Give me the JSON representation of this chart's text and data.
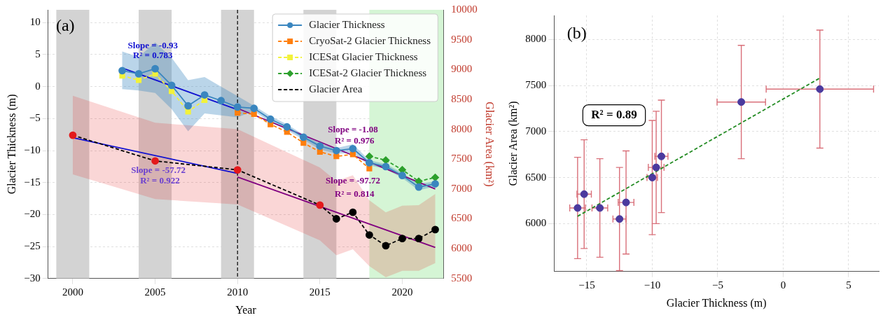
{
  "chart_data": [
    {
      "type": "line",
      "xlabel": "Year",
      "ylabel": "Glacier Thickness (m)",
      "y2label": "Glacier Area (km²)",
      "xlim": [
        1998.5,
        2022.5
      ],
      "xticks": [
        2000,
        2005,
        2010,
        2015,
        2020
      ],
      "ylim": [
        -30,
        12
      ],
      "yticks": [
        -30,
        -25,
        -20,
        -15,
        -10,
        -5,
        0,
        5,
        10
      ],
      "y2lim": [
        5500,
        10000
      ],
      "y2ticks": [
        5500,
        6000,
        6500,
        7000,
        7500,
        8000,
        8500,
        9000,
        9500,
        10000
      ],
      "grid": true,
      "legend": "top right",
      "bands": [
        {
          "axis": "x",
          "from": 1999,
          "to": 2001,
          "color": "#d3d3d3"
        },
        {
          "axis": "x",
          "from": 2004,
          "to": 2006,
          "color": "#d3d3d3"
        },
        {
          "axis": "x",
          "from": 2009,
          "to": 2011,
          "color": "#d3d3d3"
        },
        {
          "axis": "x",
          "from": 2014,
          "to": 2016,
          "color": "#d3d3d3"
        },
        {
          "axis": "x",
          "from": 2018,
          "to": 2022.5,
          "color": "#d5f5d5"
        }
      ],
      "ref_lines": [
        {
          "axis": "x",
          "value": 2010,
          "color": "#000000",
          "line_style": "dashed"
        }
      ],
      "series": [
        {
          "name": "Glacier Thickness",
          "color": "#3a86bf",
          "marker": "circle",
          "line_style": "solid",
          "x": [
            2003,
            2004,
            2005,
            2006,
            2007,
            2008,
            2009,
            2010,
            2011,
            2012,
            2013,
            2014,
            2015,
            2016,
            2017,
            2018,
            2019,
            2020,
            2021,
            2022
          ],
          "values": [
            2.5,
            2.0,
            2.8,
            0.2,
            -3.0,
            -1.3,
            -2.2,
            -3.2,
            -3.4,
            -5.1,
            -6.3,
            -7.9,
            -9.3,
            -10.0,
            -9.7,
            -11.9,
            -12.5,
            -13.9,
            -15.7,
            -15.2
          ],
          "upper": [
            5.5,
            4.6,
            6.9,
            4.5,
            1.0,
            1.5,
            0.0,
            -1.5,
            -3.0,
            -4.6,
            -5.9,
            -7.5,
            -8.9,
            -9.6,
            -9.0,
            -11.5,
            -12.1,
            -13.5,
            -15.2,
            -14.8
          ],
          "lower": [
            -0.4,
            -0.6,
            -1.0,
            -3.5,
            -7.0,
            -4.2,
            -4.5,
            -4.8,
            -3.8,
            -5.6,
            -6.8,
            -8.3,
            -9.8,
            -10.5,
            -10.4,
            -12.3,
            -12.9,
            -14.3,
            -16.2,
            -15.6
          ]
        },
        {
          "name": "CryoSat-2 Glacier Thickness",
          "color": "#ff7f0e",
          "marker": "square",
          "line_style": "dashed",
          "x": [
            2010,
            2011,
            2012,
            2013,
            2014,
            2015,
            2016,
            2017,
            2018
          ],
          "values": [
            -4.1,
            -4.3,
            -5.9,
            -7.1,
            -8.8,
            -10.2,
            -10.9,
            -10.6,
            -12.8
          ]
        },
        {
          "name": "ICESat Glacier Thickness",
          "color": "#f2f23a",
          "marker": "square",
          "line_style": "dashed",
          "x": [
            2003,
            2004,
            2005,
            2006,
            2007,
            2008
          ],
          "values": [
            1.7,
            1.0,
            2.0,
            -0.7,
            -3.9,
            -2.1
          ]
        },
        {
          "name": "ICESat-2 Glacier Thickness",
          "color": "#2ca02c",
          "marker": "diamond",
          "line_style": "dashed",
          "x": [
            2018,
            2019,
            2020,
            2021,
            2022
          ],
          "values": [
            -10.9,
            -11.5,
            -13.0,
            -14.8,
            -14.2
          ]
        },
        {
          "name": "Glacier Area",
          "axis": "y2",
          "color": "#000000",
          "marker": "circle",
          "line_style": "dashed",
          "x": [
            2000,
            2005,
            2010,
            2015,
            2016,
            2017,
            2018,
            2019,
            2020,
            2021,
            2022
          ],
          "values": [
            7900,
            7470,
            7320,
            6730,
            6500,
            6610,
            6230,
            6050,
            6170,
            6170,
            6320
          ],
          "colors": [
            "#e31a1c",
            "#e31a1c",
            "#e31a1c",
            "#e31a1c",
            "#000000",
            "#000000",
            "#000000",
            "#000000",
            "#000000",
            "#000000",
            "#000000"
          ],
          "upper": [
            8560,
            8110,
            8000,
            7360,
            7130,
            7230,
            6810,
            6610,
            6720,
            6730,
            6915
          ],
          "lower": [
            7245,
            6830,
            6740,
            6140,
            5890,
            5990,
            5710,
            5520,
            5630,
            5630,
            5760
          ]
        },
        {
          "color": "#1010d0",
          "marker": "none",
          "line_style": "solid",
          "x": [
            2003,
            2010
          ],
          "values": [
            2.9,
            -3.6
          ]
        },
        {
          "color": "#800080",
          "marker": "none",
          "line_style": "solid",
          "x": [
            2010,
            2022
          ],
          "values": [
            -3.4,
            -16.0
          ]
        },
        {
          "axis": "y2",
          "color": "#1010d0",
          "marker": "none",
          "line_style": "solid",
          "x": [
            2000,
            2010
          ],
          "values": [
            7860,
            7260
          ]
        },
        {
          "axis": "y2",
          "color": "#800080",
          "marker": "none",
          "line_style": "solid",
          "x": [
            2010,
            2022
          ],
          "values": [
            7200,
            6020
          ]
        }
      ],
      "annotations": [
        "(a)",
        "Slope = -0.93",
        "R² = 0.783",
        "Slope = -1.08",
        "R² = 0.976",
        "Slope = -57.72",
        "R² = 0.922",
        "Slope = -97.72",
        "R² = 0.814"
      ]
    },
    {
      "type": "scatter",
      "xlabel": "Glacier Thickness (m)",
      "ylabel": "Glacier Area (km²)",
      "xlim": [
        -17.5,
        7.3
      ],
      "xticks": [
        -15,
        -10,
        -5,
        0,
        5
      ],
      "ylim": [
        5480,
        8260
      ],
      "yticks": [
        6000,
        6500,
        7000,
        7500,
        8000
      ],
      "grid": true,
      "series": [
        {
          "color": "#4b3a9e",
          "marker": "circle",
          "x": [
            -15.7,
            -15.2,
            -14.0,
            -12.5,
            -12.0,
            -10.0,
            -9.7,
            -9.3,
            -3.2,
            2.8
          ],
          "values": [
            6170,
            6320,
            6170,
            6050,
            6230,
            6500,
            6610,
            6730,
            7320,
            7460
          ],
          "errors": [
            550,
            590,
            535,
            560,
            560,
            620,
            610,
            610,
            615,
            640
          ],
          "xerrors": [
            0.6,
            0.55,
            0.6,
            0.5,
            0.6,
            0.4,
            0.6,
            0.5,
            1.85,
            4.1
          ]
        },
        {
          "type": "line",
          "color": "#228b22",
          "marker": "none",
          "line_style": "dashed",
          "x": [
            -15.7,
            2.8
          ],
          "values": [
            6080,
            7580
          ]
        }
      ],
      "annotations": [
        "(b)",
        "R² = 0.89"
      ]
    }
  ]
}
